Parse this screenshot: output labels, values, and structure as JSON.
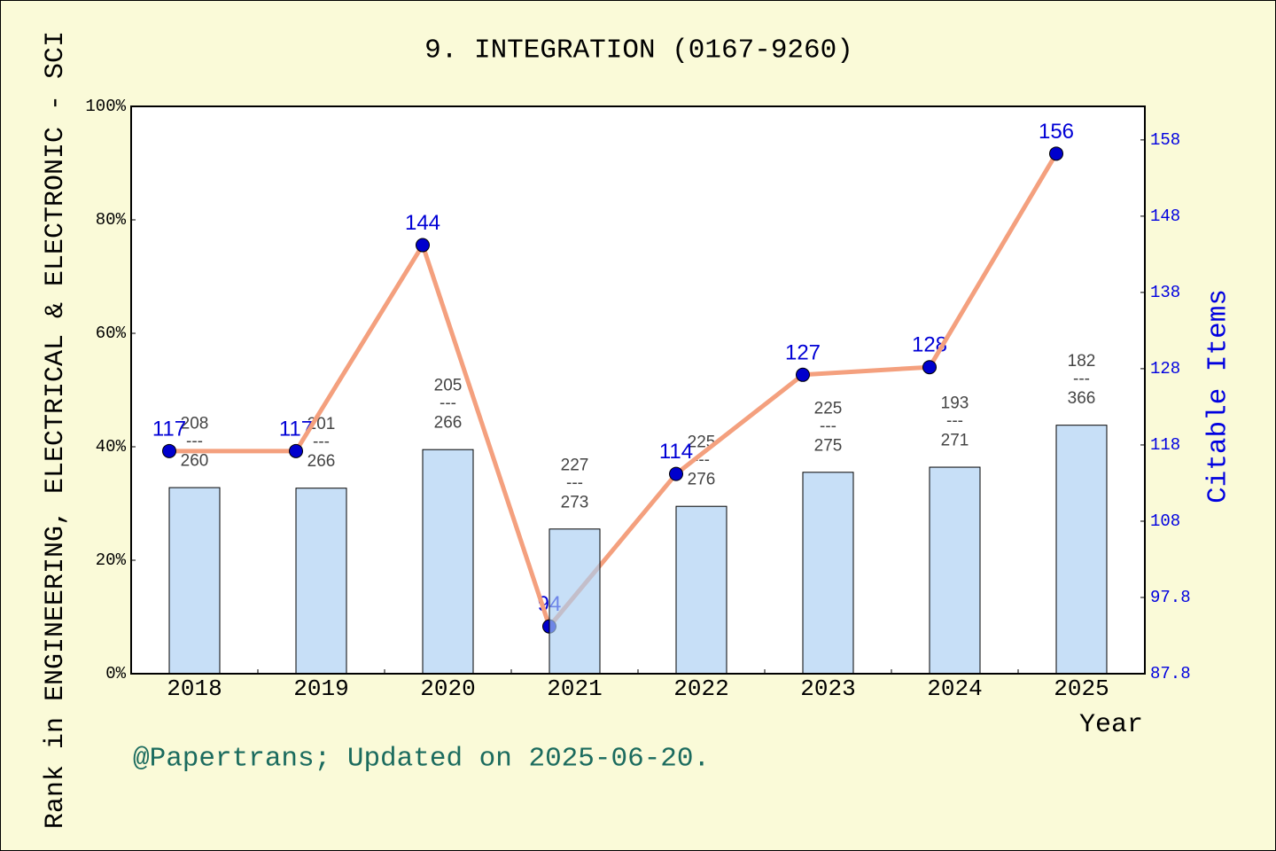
{
  "colors": {
    "page_background": "#FAFAD8",
    "plot_background": "#FFFFFF",
    "axis": "#000000",
    "bar_fill": "#A9CEF2",
    "line": "#F4A07E",
    "marker": "#0000CD",
    "value_label": "#0000D6",
    "rank_label": "#444444",
    "right_axis": "#0000E0",
    "footer": "#1B6B5E"
  },
  "footer": {
    "text": "@Papertrans; Updated on 2025-06-20."
  },
  "chart_data": {
    "type": "bar",
    "title": "9. INTEGRATION (0167-9260)",
    "xlabel": "Year",
    "ylabel": "Rank in ENGINEERING, ELECTRICAL & ELECTRONIC - SCI",
    "y2label": "Citable Items",
    "categories": [
      "2018",
      "2019",
      "2020",
      "2021",
      "2022",
      "2023",
      "2024",
      "2025"
    ],
    "ylim": [
      0,
      100
    ],
    "yticks": [
      0,
      20,
      40,
      60,
      80,
      100
    ],
    "ytick_labels": [
      "0%",
      "20%",
      "40%",
      "60%",
      "80%",
      "100%"
    ],
    "y2lim": [
      87.8,
      162.2
    ],
    "y2ticks": [
      87.8,
      97.8,
      107.8,
      117.8,
      127.8,
      137.8,
      147.8,
      157.8
    ],
    "y2tick_labels": [
      "87.8",
      "97.8",
      "108",
      "118",
      "128",
      "138",
      "148",
      "158"
    ],
    "grid": false,
    "series": [
      {
        "type": "bar",
        "axis": "left",
        "values": [
          32.8,
          32.7,
          39.5,
          25.5,
          29.5,
          35.5,
          36.4,
          43.8
        ],
        "rank_separator": "---",
        "rank_labels": [
          {
            "rank": 208,
            "total": 260
          },
          {
            "rank": 201,
            "total": 266
          },
          {
            "rank": 205,
            "total": 266
          },
          {
            "rank": 227,
            "total": 273
          },
          {
            "rank": 225,
            "total": 276
          },
          {
            "rank": 225,
            "total": 275
          },
          {
            "rank": 193,
            "total": 271
          },
          {
            "rank": 182,
            "total": 366
          }
        ]
      },
      {
        "type": "line",
        "axis": "right",
        "values": [
          117,
          117,
          144,
          94,
          114,
          127,
          128,
          156
        ]
      }
    ]
  }
}
